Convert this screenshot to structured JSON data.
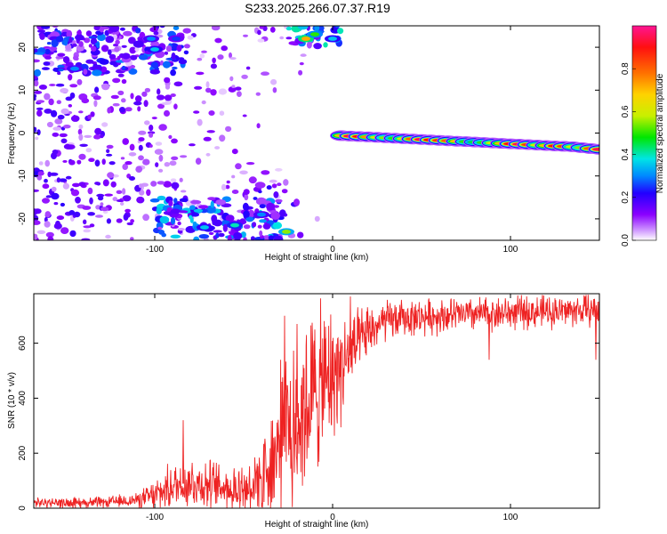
{
  "title": "S233.2025.266.07.37.R19",
  "chart_data": [
    {
      "type": "heatmap",
      "xlabel": "Height of straight line (km)",
      "ylabel": "Frequency (Hz)",
      "xlim": [
        -168,
        150
      ],
      "ylim": [
        -25,
        25
      ],
      "xticks": [
        -100,
        0,
        100
      ],
      "yticks": [
        -20,
        -10,
        0,
        10,
        20
      ],
      "colorbar": {
        "label": "Normalized spectral amplitude",
        "range": [
          0,
          1
        ],
        "ticks": [
          0.0,
          0.2,
          0.4,
          0.6,
          0.8
        ],
        "colors": [
          "#ffffff",
          "#d6a6ff",
          "#8a00ff",
          "#2200ff",
          "#0088ff",
          "#00e5e5",
          "#00e600",
          "#c8f000",
          "#ffd200",
          "#ff7000",
          "#ff1010",
          "#ff1493"
        ]
      },
      "features": {
        "line_ridge": {
          "x": [
            5,
            10,
            15,
            20,
            25,
            30,
            35,
            40,
            45,
            50,
            55,
            60,
            65,
            70,
            75,
            80,
            85,
            90,
            95,
            100,
            105,
            110,
            115,
            120,
            125,
            130,
            135,
            140,
            145,
            150
          ],
          "freq": [
            -0.6,
            -0.7,
            -0.8,
            -0.9,
            -1.0,
            -1.1,
            -1.2,
            -1.3,
            -1.4,
            -1.5,
            -1.6,
            -1.7,
            -1.8,
            -1.9,
            -2.0,
            -2.1,
            -2.2,
            -2.3,
            -2.4,
            -2.5,
            -2.6,
            -2.7,
            -2.8,
            -2.9,
            -3.0,
            -3.1,
            -3.2,
            -3.4,
            -3.6,
            -3.8
          ],
          "amplitude": [
            0.7,
            0.95,
            0.9,
            0.75,
            0.6,
            0.55,
            0.5,
            0.6,
            0.8,
            0.95,
            0.9,
            0.85,
            0.8,
            0.7,
            0.5,
            0.45,
            0.5,
            0.6,
            0.7,
            0.9,
            0.95,
            0.85,
            0.6,
            0.7,
            0.9,
            0.85,
            0.6,
            0.55,
            0.8,
            0.95
          ]
        },
        "top_blob_center": [
          -15,
          22
        ],
        "bottom_blob_center": [
          -25,
          -23
        ]
      }
    },
    {
      "type": "line",
      "xlabel": "Height of straight line (km)",
      "ylabel": "SNR (10 * v/v)",
      "xlim": [
        -168,
        150
      ],
      "ylim": [
        0,
        780
      ],
      "xticks": [
        -100,
        0,
        100
      ],
      "yticks": [
        0,
        200,
        400,
        600
      ],
      "color": "#ee2222",
      "envelope": {
        "x": [
          -168,
          -130,
          -110,
          -100,
          -90,
          -80,
          -70,
          -60,
          -50,
          -40,
          -30,
          -20,
          -10,
          0,
          10,
          20,
          30,
          40,
          60,
          80,
          100,
          120,
          140,
          150
        ],
        "y": [
          20,
          20,
          30,
          45,
          80,
          95,
          85,
          75,
          70,
          120,
          230,
          330,
          420,
          480,
          560,
          640,
          680,
          690,
          700,
          705,
          710,
          715,
          720,
          720
        ]
      },
      "noise_amplitude": {
        "x": [
          -168,
          -110,
          -95,
          -80,
          -60,
          -45,
          -35,
          -25,
          -15,
          -5,
          5,
          15,
          25,
          40,
          150
        ],
        "y": [
          10,
          15,
          45,
          60,
          50,
          70,
          120,
          200,
          200,
          170,
          120,
          70,
          50,
          40,
          35
        ]
      },
      "spikes": [
        {
          "x": -84,
          "y": 320
        },
        {
          "x": -27,
          "y": 700
        },
        {
          "x": -20,
          "y": 670
        },
        {
          "x": -10,
          "y": 650
        },
        {
          "x": -4,
          "y": 660
        },
        {
          "x": 10,
          "y": 770
        },
        {
          "x": 88,
          "y": 540
        },
        {
          "x": 148,
          "y": 540
        }
      ]
    }
  ]
}
